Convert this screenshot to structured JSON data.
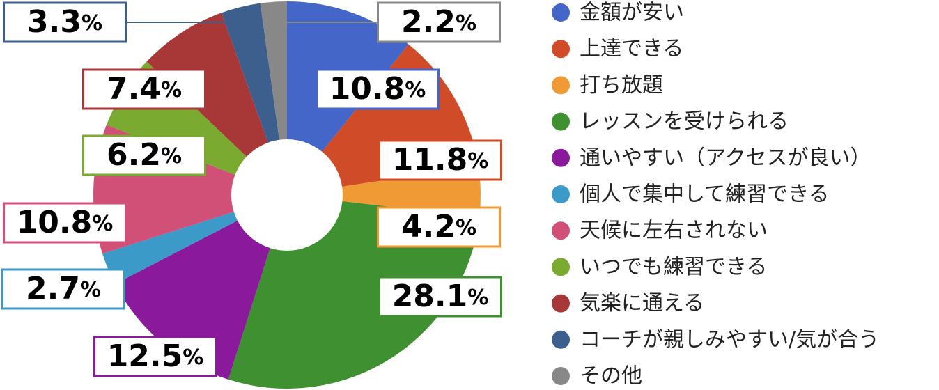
{
  "chart_data": {
    "type": "donut",
    "categories": [
      "金額が安い",
      "上達できる",
      "打ち放題",
      "レッスンを受けられる",
      "通いやすい（アクセスが良い）",
      "個人で集中して練習できる",
      "天候に左右されない",
      "いつでも練習できる",
      "気楽に通える",
      "コーチが親しみやすい/気が合う",
      "その他"
    ],
    "values": [
      10.8,
      11.8,
      4.2,
      28.1,
      12.5,
      2.7,
      10.8,
      6.2,
      7.4,
      3.3,
      2.2
    ],
    "value_labels": [
      "10.8%",
      "11.8%",
      "4.2%",
      "28.1%",
      "12.5%",
      "2.7%",
      "10.8%",
      "6.2%",
      "7.4%",
      "3.3%",
      "2.2%"
    ],
    "colors": [
      "#4466c8",
      "#d04b28",
      "#f09a35",
      "#3e9030",
      "#8a1a9b",
      "#3c9ac8",
      "#d05078",
      "#7aaa30",
      "#a83838",
      "#3d5f8e",
      "#888888"
    ],
    "legend": "right"
  }
}
